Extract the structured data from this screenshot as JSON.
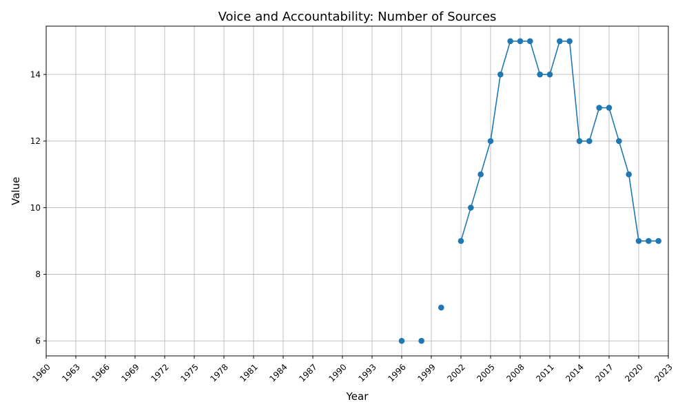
{
  "chart_data": {
    "type": "line",
    "title": "Voice and Accountability: Number of Sources",
    "xlabel": "Year",
    "ylabel": "Value",
    "xlim": [
      1960,
      2023
    ],
    "ylim": [
      5.55,
      15.45
    ],
    "x_ticks": [
      "1960",
      "1963",
      "1966",
      "1969",
      "1972",
      "1975",
      "1978",
      "1981",
      "1984",
      "1987",
      "1990",
      "1993",
      "1996",
      "1999",
      "2002",
      "2005",
      "2008",
      "2011",
      "2014",
      "2017",
      "2020",
      "2023"
    ],
    "y_ticks": [
      "6",
      "8",
      "10",
      "12",
      "14"
    ],
    "grid": true,
    "color": "#1f77b4",
    "series": [
      {
        "x": [
          1996,
          1997,
          1998,
          1999,
          2000,
          2001,
          2002,
          2003,
          2004,
          2005,
          2006,
          2007,
          2008,
          2009,
          2010,
          2011,
          2012,
          2013,
          2014,
          2015,
          2016,
          2017,
          2018,
          2019,
          2020,
          2021,
          2022
        ],
        "values": [
          6,
          null,
          6,
          null,
          7,
          null,
          9,
          10,
          11,
          12,
          14,
          15,
          15,
          15,
          14,
          14,
          15,
          15,
          12,
          12,
          13,
          13,
          12,
          11,
          9,
          9,
          9
        ]
      }
    ]
  }
}
